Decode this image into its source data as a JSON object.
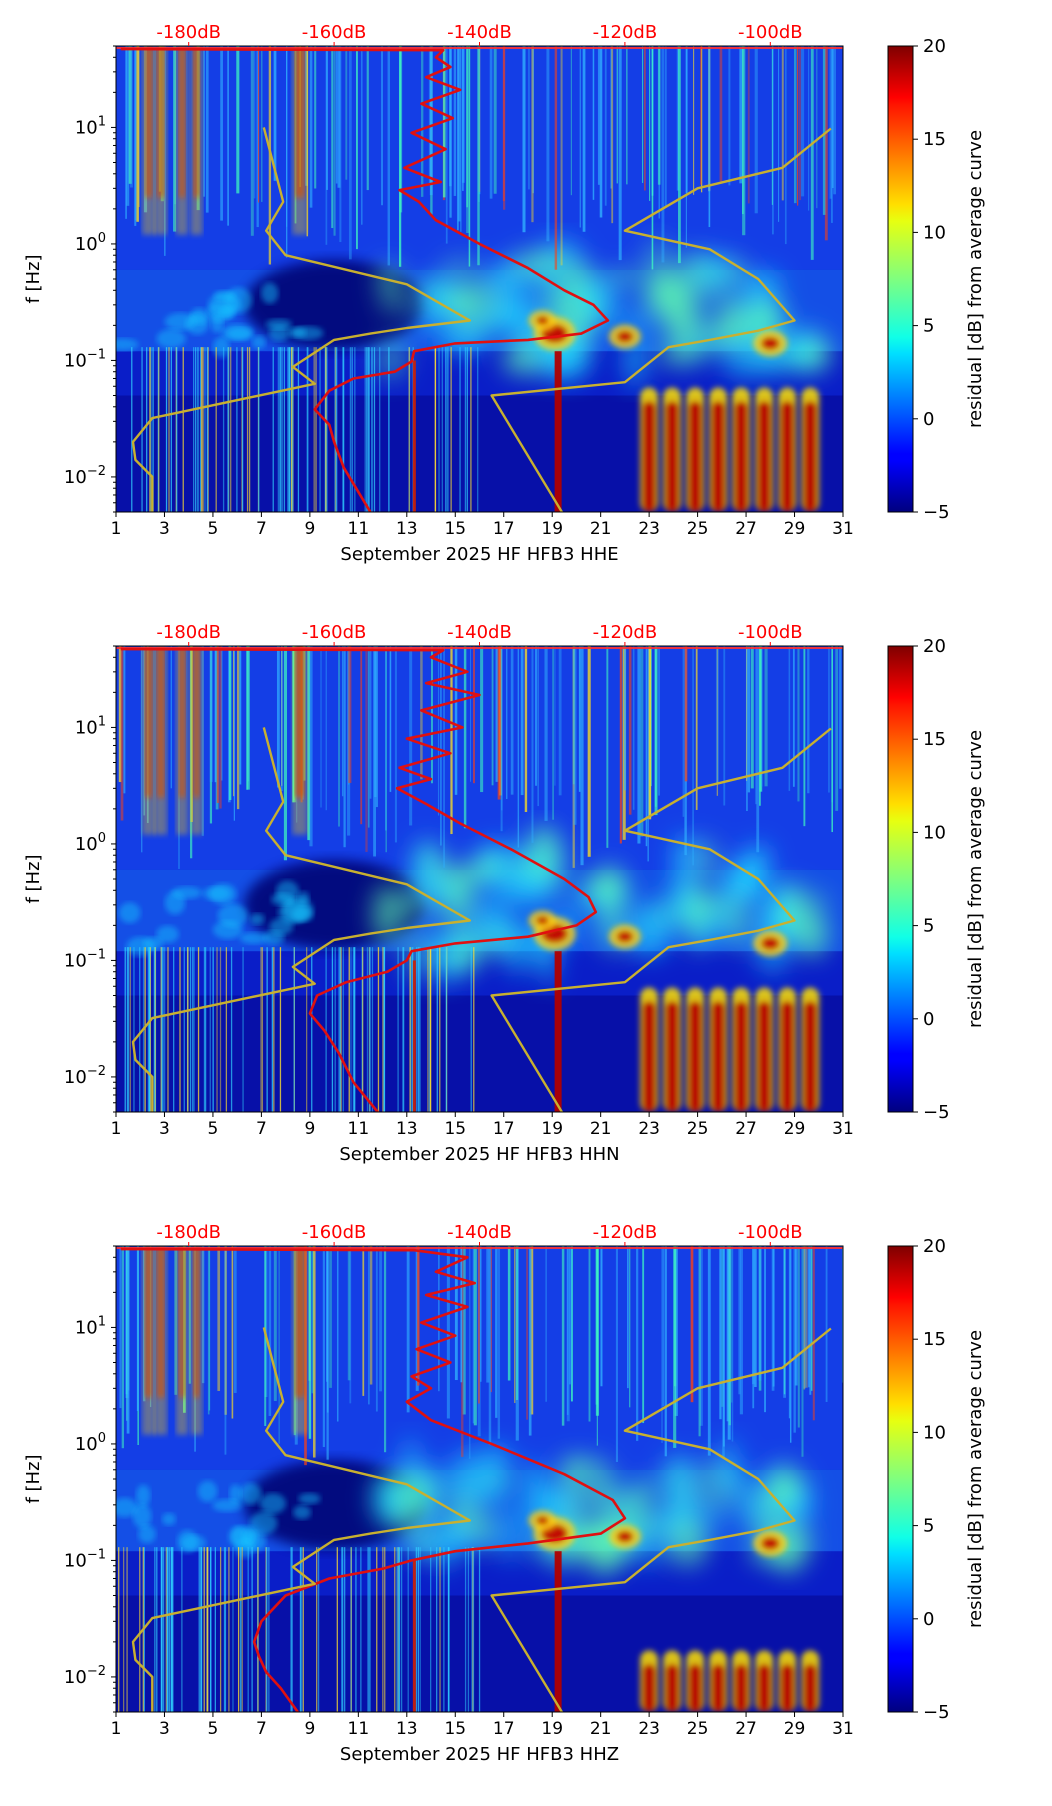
{
  "figure": {
    "colorbar": {
      "label": "residual [dB] from average curve",
      "min": -5,
      "max": 20,
      "ticks": [
        20,
        15,
        10,
        5,
        0,
        -5
      ],
      "colormap": "jet"
    },
    "colors": {
      "psd_curve": "#e01010",
      "model_curve": "#c8b030",
      "top_labels": "#ff0000"
    }
  },
  "chart_data": [
    {
      "type": "heatmap",
      "title": "",
      "xlabel": "September 2025 HF HFB3  HHE",
      "ylabel": "f [Hz]",
      "xlim": [
        1,
        31
      ],
      "ylim": [
        0.005,
        50
      ],
      "yscale": "log",
      "xticks": [
        "1",
        "3",
        "5",
        "7",
        "9",
        "11",
        "13",
        "15",
        "17",
        "19",
        "21",
        "23",
        "25",
        "27",
        "29",
        "31"
      ],
      "yticks": [
        {
          "value": 10,
          "label": "10^1"
        },
        {
          "value": 1,
          "label": "10^0"
        },
        {
          "value": 0.1,
          "label": "10^-1"
        },
        {
          "value": 0.01,
          "label": "10^-2"
        }
      ],
      "top_axis": {
        "labels": [
          "-180dB",
          "-160dB",
          "-140dB",
          "-120dB",
          "-100dB"
        ],
        "values_day": [
          4,
          10,
          16,
          22,
          28
        ]
      },
      "series": [
        {
          "name": "residual PSD curve (top dB axis)",
          "color": "#e01010",
          "x": [
            1.2,
            14.5,
            14.2,
            14.8,
            13.8,
            15.2,
            13.6,
            14.9,
            13.2,
            14.6,
            12.9,
            14.4,
            12.7,
            13.5,
            14.2,
            16.0,
            18.0,
            19.5,
            20.7,
            21.3,
            20.2,
            18.0,
            15.0,
            13.3,
            13.2,
            12.5,
            10.8,
            9.8,
            9.2,
            9.8,
            10.0,
            10.4,
            11.5
          ],
          "y": [
            47,
            46,
            40,
            33,
            27,
            21,
            16,
            12,
            9,
            6.5,
            4.5,
            3.4,
            2.9,
            2.3,
            1.6,
            1.0,
            0.62,
            0.4,
            0.3,
            0.22,
            0.17,
            0.15,
            0.14,
            0.12,
            0.098,
            0.08,
            0.07,
            0.055,
            0.038,
            0.028,
            0.02,
            0.012,
            0.005
          ]
        },
        {
          "name": "noise model curve (top dB axis)",
          "color": "#c8b030",
          "x": [
            7.1,
            7.6,
            7.9,
            7.2,
            8.0,
            13.0,
            15.6,
            13.0,
            11.5,
            10.0,
            8.3,
            9.2,
            2.5,
            1.7,
            1.8,
            2.5,
            2.5
          ],
          "y": [
            10,
            4.0,
            2.3,
            1.3,
            0.8,
            0.45,
            0.22,
            0.19,
            0.17,
            0.15,
            0.088,
            0.063,
            0.032,
            0.02,
            0.014,
            0.01,
            0.005
          ]
        },
        {
          "name": "noise model curve right branch (top dB axis)",
          "color": "#c8b030",
          "x": [
            19.4,
            16.5,
            22.0,
            23.8,
            25.5,
            27.5,
            29.0,
            27.5,
            25.5,
            22.0,
            25.0,
            28.5,
            30.5
          ],
          "y": [
            0.005,
            0.05,
            0.065,
            0.13,
            0.15,
            0.18,
            0.22,
            0.5,
            0.9,
            1.3,
            3.0,
            4.5,
            9.8
          ]
        }
      ]
    },
    {
      "type": "heatmap",
      "title": "",
      "xlabel": "September 2025 HF HFB3  HHN",
      "ylabel": "f [Hz]",
      "xlim": [
        1,
        31
      ],
      "ylim": [
        0.005,
        50
      ],
      "yscale": "log",
      "xticks": [
        "1",
        "3",
        "5",
        "7",
        "9",
        "11",
        "13",
        "15",
        "17",
        "19",
        "21",
        "23",
        "25",
        "27",
        "29",
        "31"
      ],
      "yticks": [
        {
          "value": 10,
          "label": "10^1"
        },
        {
          "value": 1,
          "label": "10^0"
        },
        {
          "value": 0.1,
          "label": "10^-1"
        },
        {
          "value": 0.01,
          "label": "10^-2"
        }
      ],
      "top_axis": {
        "labels": [
          "-180dB",
          "-160dB",
          "-140dB",
          "-120dB",
          "-100dB"
        ],
        "values_day": [
          4,
          10,
          16,
          22,
          28
        ]
      },
      "series": [
        {
          "name": "residual PSD curve (top dB axis)",
          "color": "#e01010",
          "x": [
            1.2,
            14.5,
            14.0,
            15.5,
            13.8,
            16.0,
            13.6,
            15.3,
            13.0,
            14.8,
            12.7,
            14.0,
            12.6,
            13.8,
            15.2,
            17.3,
            19.5,
            20.5,
            20.8,
            20.0,
            18.0,
            15.0,
            13.2,
            13.0,
            12.2,
            10.5,
            9.3,
            9.0,
            9.6,
            10.2,
            10.8,
            11.8
          ],
          "y": [
            47,
            46,
            40,
            30,
            24,
            19,
            14,
            10,
            8,
            6,
            4.5,
            3.6,
            3.0,
            2.2,
            1.5,
            0.9,
            0.5,
            0.35,
            0.26,
            0.2,
            0.16,
            0.14,
            0.12,
            0.1,
            0.08,
            0.065,
            0.05,
            0.035,
            0.025,
            0.016,
            0.009,
            0.005
          ]
        },
        {
          "name": "noise model curve (top dB axis)",
          "color": "#c8b030",
          "x": [
            7.1,
            7.6,
            7.9,
            7.2,
            8.0,
            13.0,
            15.6,
            13.0,
            11.5,
            10.0,
            8.3,
            9.2,
            2.5,
            1.7,
            1.8,
            2.5,
            2.5
          ],
          "y": [
            10,
            4.0,
            2.3,
            1.3,
            0.8,
            0.45,
            0.22,
            0.19,
            0.17,
            0.15,
            0.088,
            0.063,
            0.032,
            0.02,
            0.014,
            0.01,
            0.005
          ]
        },
        {
          "name": "noise model curve right branch (top dB axis)",
          "color": "#c8b030",
          "x": [
            19.4,
            16.5,
            22.0,
            23.8,
            25.5,
            27.5,
            29.0,
            27.5,
            25.5,
            22.0,
            25.0,
            28.5,
            30.5
          ],
          "y": [
            0.005,
            0.05,
            0.065,
            0.13,
            0.15,
            0.18,
            0.22,
            0.5,
            0.9,
            1.3,
            3.0,
            4.5,
            9.8
          ]
        }
      ]
    },
    {
      "type": "heatmap",
      "title": "",
      "xlabel": "September 2025 HF HFB3  HHZ",
      "ylabel": "f [Hz]",
      "xlim": [
        1,
        31
      ],
      "ylim": [
        0.005,
        50
      ],
      "yscale": "log",
      "xticks": [
        "1",
        "3",
        "5",
        "7",
        "9",
        "11",
        "13",
        "15",
        "17",
        "19",
        "21",
        "23",
        "25",
        "27",
        "29",
        "31"
      ],
      "yticks": [
        {
          "value": 10,
          "label": "10^1"
        },
        {
          "value": 1,
          "label": "10^0"
        },
        {
          "value": 0.1,
          "label": "10^-1"
        },
        {
          "value": 0.01,
          "label": "10^-2"
        }
      ],
      "top_axis": {
        "labels": [
          "-180dB",
          "-160dB",
          "-140dB",
          "-120dB",
          "-100dB"
        ],
        "values_day": [
          4,
          10,
          16,
          22,
          28
        ]
      },
      "series": [
        {
          "name": "residual PSD curve (top dB axis)",
          "color": "#e01010",
          "x": [
            1.2,
            13.3,
            15.5,
            14.2,
            15.8,
            13.8,
            15.5,
            13.6,
            15.0,
            13.4,
            14.8,
            13.2,
            14.0,
            13.0,
            14.0,
            16.5,
            19.5,
            21.5,
            22.0,
            21.0,
            18.0,
            15.0,
            13.2,
            12.0,
            9.8,
            8.0,
            7.0,
            6.7,
            6.9,
            7.2,
            7.8,
            8.5
          ],
          "y": [
            47,
            46,
            40,
            30,
            24,
            19,
            15,
            11,
            8.5,
            6.5,
            5,
            3.8,
            3.0,
            2.3,
            1.6,
            1.0,
            0.55,
            0.33,
            0.23,
            0.17,
            0.14,
            0.12,
            0.1,
            0.085,
            0.07,
            0.05,
            0.03,
            0.02,
            0.015,
            0.011,
            0.008,
            0.005
          ]
        },
        {
          "name": "noise model curve (top dB axis)",
          "color": "#c8b030",
          "x": [
            7.1,
            7.6,
            7.9,
            7.2,
            8.0,
            13.0,
            15.6,
            13.0,
            11.5,
            10.0,
            8.3,
            9.2,
            2.5,
            1.7,
            1.8,
            2.5,
            2.5
          ],
          "y": [
            10,
            4.0,
            2.3,
            1.3,
            0.8,
            0.45,
            0.22,
            0.19,
            0.17,
            0.15,
            0.088,
            0.063,
            0.032,
            0.02,
            0.014,
            0.01,
            0.005
          ]
        },
        {
          "name": "noise model curve right branch (top dB axis)",
          "color": "#c8b030",
          "x": [
            19.4,
            16.5,
            22.0,
            23.8,
            25.5,
            27.5,
            29.0,
            27.5,
            25.5,
            22.0,
            25.0,
            28.5,
            30.5
          ],
          "y": [
            0.005,
            0.05,
            0.065,
            0.13,
            0.15,
            0.18,
            0.22,
            0.5,
            0.9,
            1.3,
            3.0,
            4.5,
            9.8
          ]
        }
      ]
    }
  ]
}
